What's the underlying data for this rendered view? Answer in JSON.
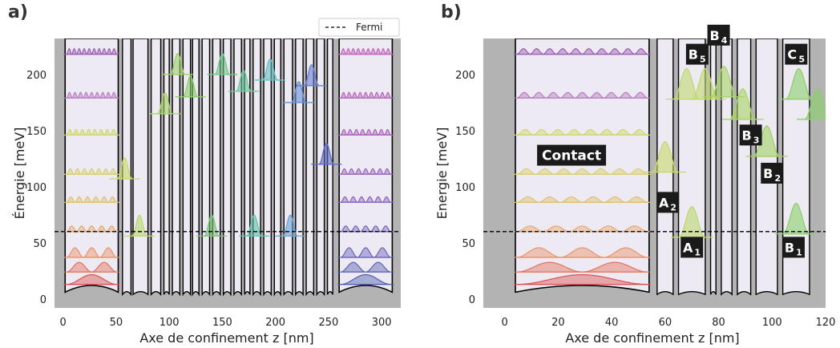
{
  "chart_data": [
    {
      "panel": "a)",
      "type": "line",
      "xlabel": "Axe de confinement z [nm]",
      "ylabel": "Énergie [meV]",
      "xlim": [
        -8,
        318
      ],
      "ylim": [
        -8,
        232
      ],
      "xticks": [
        0,
        50,
        100,
        150,
        200,
        250,
        300
      ],
      "yticks": [
        0,
        50,
        100,
        150,
        200
      ],
      "legend": {
        "label": "Fermi",
        "placement": "top-right"
      },
      "fermi_level": 60,
      "contact_left": [
        2,
        52
      ],
      "contact_right": [
        260,
        310
      ],
      "contact_levels": [
        13,
        24,
        37,
        60,
        86,
        111,
        146,
        179,
        218
      ],
      "barriers": [
        [
          52,
          56
        ],
        [
          64,
          66
        ],
        [
          80,
          83
        ],
        [
          92,
          95
        ],
        [
          100,
          103
        ],
        [
          110,
          113
        ],
        [
          120,
          122
        ],
        [
          128,
          131
        ],
        [
          138,
          141
        ],
        [
          148,
          151
        ],
        [
          158,
          161
        ],
        [
          168,
          171
        ],
        [
          176,
          179
        ],
        [
          186,
          189
        ],
        [
          196,
          199
        ],
        [
          205,
          208
        ],
        [
          216,
          219
        ],
        [
          226,
          229
        ],
        [
          236,
          239
        ],
        [
          246,
          249
        ],
        [
          254,
          256
        ]
      ],
      "well_states": [
        {
          "z": 58,
          "E": 107,
          "color": "#c8d86a"
        },
        {
          "z": 72,
          "E": 56,
          "color": "#bcd870"
        },
        {
          "z": 96,
          "E": 165,
          "color": "#a8d468"
        },
        {
          "z": 108,
          "E": 200,
          "color": "#9ed06a"
        },
        {
          "z": 120,
          "E": 180,
          "color": "#8ccf6c"
        },
        {
          "z": 140,
          "E": 56,
          "color": "#7cc878"
        },
        {
          "z": 150,
          "E": 200,
          "color": "#72c88a"
        },
        {
          "z": 170,
          "E": 185,
          "color": "#6cc9a0"
        },
        {
          "z": 180,
          "E": 56,
          "color": "#66c4ae"
        },
        {
          "z": 195,
          "E": 195,
          "color": "#66bfc2"
        },
        {
          "z": 214,
          "E": 56,
          "color": "#6aa4d8"
        },
        {
          "z": 222,
          "E": 175,
          "color": "#6a8fd6"
        },
        {
          "z": 234,
          "E": 190,
          "color": "#6a7ed2"
        },
        {
          "z": 248,
          "E": 120,
          "color": "#5f6dc8"
        }
      ]
    },
    {
      "panel": "b)",
      "type": "line",
      "xlabel": "Axe de confinement z [nm]",
      "ylabel": "Energie [meV]",
      "xlim": [
        -8,
        120
      ],
      "ylim": [
        -8,
        232
      ],
      "xticks": [
        0,
        20,
        40,
        60,
        80,
        100,
        120
      ],
      "yticks": [
        0,
        50,
        100,
        150,
        200
      ],
      "fermi_level": 60,
      "contact": [
        4,
        54
      ],
      "contact_levels": [
        13,
        24,
        37,
        60,
        86,
        111,
        146,
        179,
        218
      ],
      "barriers": [
        [
          54,
          57
        ],
        [
          63,
          65
        ],
        [
          75,
          77
        ],
        [
          79,
          81
        ],
        [
          85,
          87
        ],
        [
          92,
          94
        ],
        [
          102,
          104
        ],
        [
          114,
          116
        ]
      ],
      "well_states": [
        {
          "z": 60,
          "E": 113,
          "color": "#c8d86a"
        },
        {
          "z": 70,
          "E": 55,
          "color": "#bcd870"
        },
        {
          "z": 68,
          "E": 178,
          "color": "#c2d872"
        },
        {
          "z": 75,
          "E": 178,
          "color": "#c2d872"
        },
        {
          "z": 82,
          "E": 180,
          "color": "#a8d468"
        },
        {
          "z": 89,
          "E": 160,
          "color": "#a8d468"
        },
        {
          "z": 98,
          "E": 127,
          "color": "#a0d066"
        },
        {
          "z": 109,
          "E": 58,
          "color": "#8ccf6c"
        },
        {
          "z": 110,
          "E": 178,
          "color": "#8ccf6c"
        },
        {
          "z": 117,
          "E": 160,
          "color": "#8ccf6c"
        }
      ],
      "annotations": [
        {
          "text": "Contact",
          "x": 25,
          "y": 128
        },
        {
          "main": "A",
          "sub": "2",
          "x": 61,
          "y": 86
        },
        {
          "main": "A",
          "sub": "1",
          "x": 70,
          "y": 46
        },
        {
          "main": "B",
          "sub": "5",
          "x": 72,
          "y": 218
        },
        {
          "main": "B",
          "sub": "4",
          "x": 80,
          "y": 235
        },
        {
          "main": "B",
          "sub": "3",
          "x": 92,
          "y": 146
        },
        {
          "main": "B",
          "sub": "2",
          "x": 100,
          "y": 112
        },
        {
          "main": "B",
          "sub": "1",
          "x": 108,
          "y": 46
        },
        {
          "main": "C",
          "sub": "5",
          "x": 109,
          "y": 218
        }
      ]
    }
  ],
  "colors": {
    "barrier_gray": "#b3b3b3",
    "plot_bg": "#ebe8f0",
    "well_fill": "#eeeaf3",
    "outline": "#000000",
    "level_colors": [
      "#d9534f",
      "#e2735a",
      "#e8926a",
      "#e7a96f",
      "#e0be72",
      "#d8cf70",
      "#cfd86b",
      "#b77cc4",
      "#9a5fb3"
    ],
    "right_contact_colors": [
      "#4d5fb0",
      "#5c63b6",
      "#6b66ba",
      "#7a67be",
      "#8a67c0",
      "#9a66c0",
      "#aa64be",
      "#b665bc",
      "#c166ba"
    ]
  }
}
